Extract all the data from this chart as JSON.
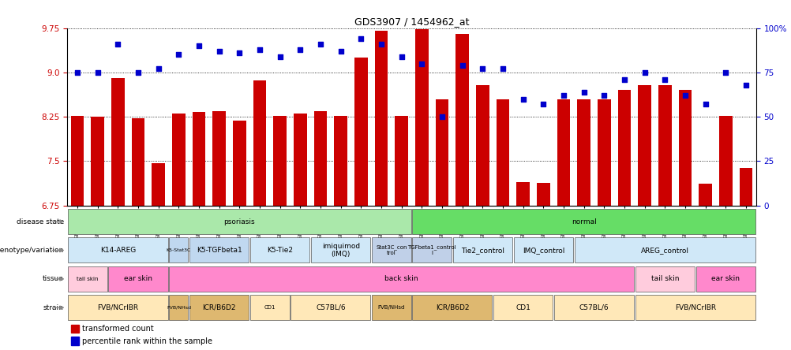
{
  "title": "GDS3907 / 1454962_at",
  "samples": [
    "GSM684694",
    "GSM684695",
    "GSM684696",
    "GSM684688",
    "GSM684689",
    "GSM684690",
    "GSM684700",
    "GSM684701",
    "GSM684704",
    "GSM684705",
    "GSM684706",
    "GSM684676",
    "GSM684677",
    "GSM684678",
    "GSM684682",
    "GSM684683",
    "GSM684684",
    "GSM684702",
    "GSM684703",
    "GSM684707",
    "GSM684708",
    "GSM684709",
    "GSM684679",
    "GSM684680",
    "GSM684681",
    "GSM684685",
    "GSM684686",
    "GSM684687",
    "GSM684697",
    "GSM684698",
    "GSM684699",
    "GSM684691",
    "GSM684692",
    "GSM684693"
  ],
  "bar_values": [
    8.26,
    8.25,
    8.9,
    8.22,
    7.47,
    8.3,
    8.33,
    8.35,
    8.18,
    8.86,
    8.26,
    8.3,
    8.34,
    8.27,
    9.25,
    9.7,
    8.27,
    9.73,
    8.55,
    9.65,
    8.78,
    8.55,
    7.15,
    7.13,
    8.55,
    8.55,
    8.55,
    8.7,
    8.78,
    8.78,
    8.7,
    7.12,
    8.27,
    7.38
  ],
  "percentile_values": [
    75,
    75,
    91,
    75,
    77,
    85,
    90,
    87,
    86,
    88,
    84,
    88,
    91,
    87,
    94,
    91,
    84,
    80,
    50,
    79,
    77,
    77,
    60,
    57,
    62,
    64,
    62,
    71,
    75,
    71,
    62,
    57,
    75,
    68
  ],
  "ylim_left": [
    6.75,
    9.75
  ],
  "yticks_left": [
    6.75,
    7.5,
    8.25,
    9.0,
    9.75
  ],
  "ylim_right": [
    0,
    100
  ],
  "yticks_right": [
    0,
    25,
    50,
    75,
    100
  ],
  "bar_color": "#CC0000",
  "dot_color": "#0000CC",
  "disease_state": {
    "groups": [
      {
        "label": "psoriasis",
        "start": 0,
        "end": 16,
        "color": "#aae8aa"
      },
      {
        "label": "normal",
        "start": 17,
        "end": 33,
        "color": "#66dd66"
      }
    ]
  },
  "genotype_variation": {
    "groups": [
      {
        "label": "K14-AREG",
        "start": 0,
        "end": 4,
        "color": "#d0e8f8"
      },
      {
        "label": "K5-Stat3C",
        "start": 5,
        "end": 5,
        "color": "#c0d8f0"
      },
      {
        "label": "K5-TGFbeta1",
        "start": 6,
        "end": 8,
        "color": "#c0d8f0"
      },
      {
        "label": "K5-Tie2",
        "start": 9,
        "end": 11,
        "color": "#d0e8f8"
      },
      {
        "label": "imiquimod\n(IMQ)",
        "start": 12,
        "end": 14,
        "color": "#d0e8f8"
      },
      {
        "label": "Stat3C_con\ntrol",
        "start": 15,
        "end": 16,
        "color": "#c0d0e8"
      },
      {
        "label": "TGFbeta1_control\nl",
        "start": 17,
        "end": 18,
        "color": "#c0d0e8"
      },
      {
        "label": "Tie2_control",
        "start": 19,
        "end": 21,
        "color": "#d0e8f8"
      },
      {
        "label": "IMQ_control",
        "start": 22,
        "end": 24,
        "color": "#d0e8f8"
      },
      {
        "label": "AREG_control",
        "start": 25,
        "end": 33,
        "color": "#d0e8f8"
      }
    ]
  },
  "tissue": {
    "groups": [
      {
        "label": "tail skin",
        "start": 0,
        "end": 1,
        "color": "#ffccdd"
      },
      {
        "label": "ear skin",
        "start": 2,
        "end": 4,
        "color": "#ff88cc"
      },
      {
        "label": "back skin",
        "start": 5,
        "end": 27,
        "color": "#ff88cc"
      },
      {
        "label": "tail skin",
        "start": 28,
        "end": 30,
        "color": "#ffccdd"
      },
      {
        "label": "ear skin",
        "start": 31,
        "end": 33,
        "color": "#ff88cc"
      }
    ]
  },
  "strain": {
    "groups": [
      {
        "label": "FVB/NCrIBR",
        "start": 0,
        "end": 4,
        "color": "#ffe8b8"
      },
      {
        "label": "FVB/NHsd",
        "start": 5,
        "end": 5,
        "color": "#deb870"
      },
      {
        "label": "ICR/B6D2",
        "start": 6,
        "end": 8,
        "color": "#deb870"
      },
      {
        "label": "CD1",
        "start": 9,
        "end": 10,
        "color": "#ffe8b8"
      },
      {
        "label": "C57BL/6",
        "start": 11,
        "end": 14,
        "color": "#ffe8b8"
      },
      {
        "label": "FVB/NHsd",
        "start": 15,
        "end": 16,
        "color": "#deb870"
      },
      {
        "label": "ICR/B6D2",
        "start": 17,
        "end": 20,
        "color": "#deb870"
      },
      {
        "label": "CD1",
        "start": 21,
        "end": 23,
        "color": "#ffe8b8"
      },
      {
        "label": "C57BL/6",
        "start": 24,
        "end": 27,
        "color": "#ffe8b8"
      },
      {
        "label": "FVB/NCrIBR",
        "start": 28,
        "end": 33,
        "color": "#ffe8b8"
      }
    ]
  }
}
